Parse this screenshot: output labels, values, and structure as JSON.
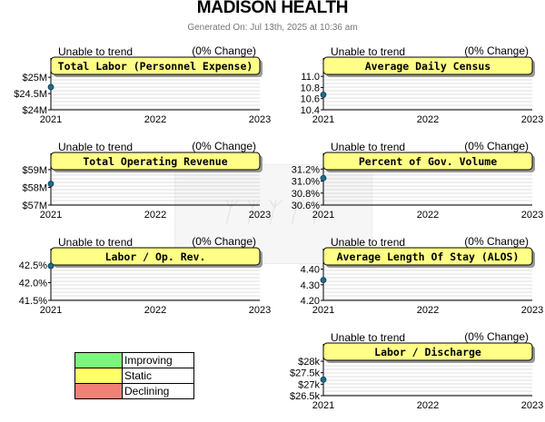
{
  "header": {
    "title": "MADISON HEALTH",
    "generated": "Generated On: Jul 13th, 2025 at 10:36 am"
  },
  "colors": {
    "title_box_fill": "#ffff88",
    "title_box_shadow": "#999999",
    "grid": "#bfbfbf",
    "marker": "#1f6b8a"
  },
  "legend": [
    {
      "label": "Improving",
      "color": "#7cf57c"
    },
    {
      "label": "Static",
      "color": "#ffff66"
    },
    {
      "label": "Declining",
      "color": "#f08078"
    }
  ],
  "chart_data": [
    {
      "type": "line",
      "title": "Total Labor (Personnel Expense)",
      "trend_text": "Unable to trend",
      "change_text": "(0% Change)",
      "x_ticks": [
        "2021",
        "2022",
        "2023"
      ],
      "ylim": [
        24,
        25.2
      ],
      "y_ticks": [
        {
          "v": 24,
          "label": "$24M"
        },
        {
          "v": 24.5,
          "label": "$24.5M"
        },
        {
          "v": 25,
          "label": "$25M"
        }
      ],
      "points": [
        {
          "x": "2021",
          "y": 24.7
        }
      ]
    },
    {
      "type": "line",
      "title": "Average Daily Census",
      "trend_text": "Unable to trend",
      "change_text": "(0% Change)",
      "x_ticks": [
        "2021",
        "2022",
        "2023"
      ],
      "ylim": [
        10.4,
        11.1
      ],
      "y_ticks": [
        {
          "v": 10.4,
          "label": "10.4"
        },
        {
          "v": 10.6,
          "label": "10.6"
        },
        {
          "v": 10.8,
          "label": "10.8"
        },
        {
          "v": 11.0,
          "label": "11.0"
        }
      ],
      "points": [
        {
          "x": "2021",
          "y": 10.67
        }
      ]
    },
    {
      "type": "line",
      "title": "Total Operating Revenue",
      "trend_text": "Unable to trend",
      "change_text": "(0% Change)",
      "x_ticks": [
        "2021",
        "2022",
        "2023"
      ],
      "ylim": [
        57,
        59.2
      ],
      "y_ticks": [
        {
          "v": 57,
          "label": "$57M"
        },
        {
          "v": 58,
          "label": "$58M"
        },
        {
          "v": 59,
          "label": "$59M"
        }
      ],
      "points": [
        {
          "x": "2021",
          "y": 58.2
        }
      ]
    },
    {
      "type": "line",
      "title": "Percent of Gov. Volume",
      "trend_text": "Unable to trend",
      "change_text": "(0% Change)",
      "x_ticks": [
        "2021",
        "2022",
        "2023"
      ],
      "ylim": [
        30.6,
        31.25
      ],
      "y_ticks": [
        {
          "v": 30.6,
          "label": "30.6%"
        },
        {
          "v": 30.8,
          "label": "30.8%"
        },
        {
          "v": 31.0,
          "label": "31.0%"
        },
        {
          "v": 31.2,
          "label": "31.2%"
        }
      ],
      "points": [
        {
          "x": "2021",
          "y": 31.05
        }
      ]
    },
    {
      "type": "line",
      "title": "Labor / Op. Rev.",
      "trend_text": "Unable to trend",
      "change_text": "(0% Change)",
      "x_ticks": [
        "2021",
        "2022",
        "2023"
      ],
      "ylim": [
        41.5,
        42.6
      ],
      "y_ticks": [
        {
          "v": 41.5,
          "label": "41.5%"
        },
        {
          "v": 42.0,
          "label": "42.0%"
        },
        {
          "v": 42.5,
          "label": "42.5%"
        }
      ],
      "points": [
        {
          "x": "2021",
          "y": 42.47
        }
      ]
    },
    {
      "type": "line",
      "title": "Average Length Of Stay (ALOS)",
      "trend_text": "Unable to trend",
      "change_text": "(0% Change)",
      "x_ticks": [
        "2021",
        "2022",
        "2023"
      ],
      "ylim": [
        4.2,
        4.45
      ],
      "y_ticks": [
        {
          "v": 4.2,
          "label": "4.20"
        },
        {
          "v": 4.3,
          "label": "4.30"
        },
        {
          "v": 4.4,
          "label": "4.40"
        }
      ],
      "points": [
        {
          "x": "2021",
          "y": 4.33
        }
      ]
    },
    {
      "type": "line",
      "title": "Labor / Discharge",
      "trend_text": "Unable to trend",
      "change_text": "(0% Change)",
      "x_ticks": [
        "2021",
        "2022",
        "2023"
      ],
      "ylim": [
        26.5,
        28.2
      ],
      "y_ticks": [
        {
          "v": 26.5,
          "label": "$26.5k"
        },
        {
          "v": 27,
          "label": "$27k"
        },
        {
          "v": 27.5,
          "label": "$27.5k"
        },
        {
          "v": 28,
          "label": "$28k"
        }
      ],
      "points": [
        {
          "x": "2021",
          "y": 27.2
        }
      ]
    }
  ]
}
